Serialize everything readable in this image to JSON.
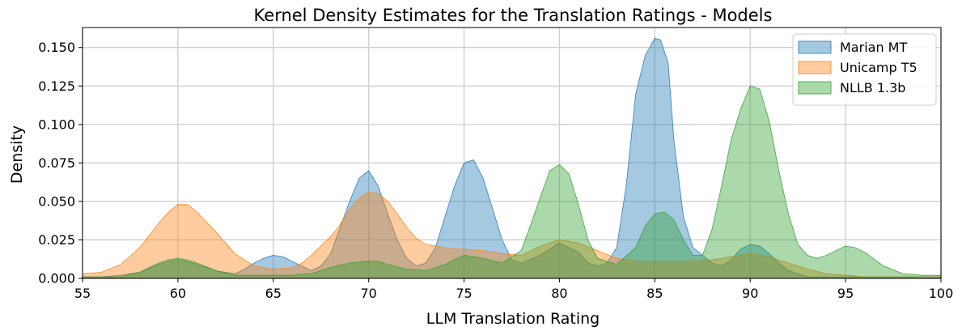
{
  "chart_data": {
    "type": "area",
    "title": "Kernel Density Estimates for the Translation Ratings - Models",
    "xlabel": "LLM Translation Rating",
    "ylabel": "Density",
    "xlim": [
      55,
      100
    ],
    "ylim": [
      0,
      0.163
    ],
    "xticks": [
      55,
      60,
      65,
      70,
      75,
      80,
      85,
      90,
      95,
      100
    ],
    "xtick_labels": [
      "55",
      "60",
      "65",
      "70",
      "75",
      "80",
      "85",
      "90",
      "95",
      "100"
    ],
    "yticks": [
      0,
      0.025,
      0.05,
      0.075,
      0.1,
      0.125,
      0.15
    ],
    "ytick_labels": [
      "0.000",
      "0.025",
      "0.050",
      "0.075",
      "0.100",
      "0.125",
      "0.150"
    ],
    "grid": true,
    "legend_position": "top-right",
    "series": [
      {
        "name": "Marian MT",
        "color": "#1f77b4",
        "x": [
          55,
          56,
          57,
          58,
          59,
          59.5,
          60,
          60.5,
          61,
          62,
          63,
          63.5,
          64,
          64.5,
          65,
          65.5,
          66,
          67,
          67.5,
          68,
          68.5,
          69,
          69.5,
          70,
          70.5,
          71,
          71.5,
          72,
          72.5,
          73,
          73.5,
          74,
          74.5,
          75,
          75.5,
          76,
          76.5,
          77,
          77.5,
          78,
          79,
          80,
          81,
          81.5,
          82,
          82.5,
          83,
          83.5,
          84,
          84.5,
          85,
          85.3,
          85.7,
          86,
          86.5,
          87,
          87.5,
          88,
          88.5,
          89,
          89.5,
          90,
          90.5,
          91,
          91.5,
          92,
          93,
          94,
          95,
          96,
          97,
          98,
          100
        ],
        "y": [
          0.001,
          0.001,
          0.002,
          0.004,
          0.009,
          0.011,
          0.012,
          0.011,
          0.009,
          0.005,
          0.003,
          0.006,
          0.01,
          0.013,
          0.015,
          0.014,
          0.011,
          0.005,
          0.008,
          0.016,
          0.033,
          0.05,
          0.065,
          0.07,
          0.06,
          0.042,
          0.025,
          0.013,
          0.008,
          0.01,
          0.02,
          0.04,
          0.06,
          0.075,
          0.077,
          0.065,
          0.045,
          0.025,
          0.012,
          0.01,
          0.015,
          0.023,
          0.017,
          0.01,
          0.008,
          0.01,
          0.02,
          0.06,
          0.12,
          0.145,
          0.156,
          0.155,
          0.14,
          0.09,
          0.04,
          0.02,
          0.015,
          0.01,
          0.008,
          0.012,
          0.019,
          0.022,
          0.021,
          0.016,
          0.01,
          0.005,
          0.001,
          0.001,
          0.001,
          0.001,
          0.001,
          0.001,
          0.001
        ]
      },
      {
        "name": "Unicamp T5",
        "color": "#ff7f0e",
        "x": [
          55,
          56,
          57,
          58,
          58.5,
          59,
          59.5,
          60,
          60.5,
          61,
          62,
          63,
          64,
          65,
          66,
          66.5,
          67,
          68,
          68.5,
          69,
          69.5,
          70,
          70.5,
          71,
          71.5,
          72,
          72.5,
          73,
          73.5,
          74,
          74.5,
          75,
          76,
          77,
          78,
          79,
          80,
          81,
          82,
          83,
          84,
          85,
          86,
          87,
          88,
          89,
          90,
          91,
          92,
          93,
          94,
          95,
          96,
          97,
          98,
          99,
          100
        ],
        "y": [
          0.003,
          0.004,
          0.009,
          0.02,
          0.028,
          0.036,
          0.043,
          0.048,
          0.048,
          0.043,
          0.03,
          0.016,
          0.008,
          0.006,
          0.007,
          0.01,
          0.015,
          0.027,
          0.035,
          0.045,
          0.052,
          0.056,
          0.055,
          0.05,
          0.042,
          0.033,
          0.026,
          0.022,
          0.021,
          0.02,
          0.019,
          0.019,
          0.018,
          0.016,
          0.015,
          0.021,
          0.025,
          0.023,
          0.018,
          0.013,
          0.011,
          0.011,
          0.011,
          0.011,
          0.012,
          0.014,
          0.016,
          0.014,
          0.01,
          0.006,
          0.003,
          0.002,
          0.001,
          0.001,
          0.001,
          0.001,
          0.001
        ]
      },
      {
        "name": "NLLB 1.3b",
        "color": "#2ca02c",
        "x": [
          55,
          56,
          57,
          58,
          59,
          59.5,
          60,
          60.5,
          61,
          62,
          63,
          64,
          65,
          66,
          67,
          68,
          69,
          70,
          70.5,
          71,
          72,
          73,
          74,
          75,
          76,
          77,
          78,
          78.5,
          79,
          79.5,
          80,
          80.5,
          81,
          81.5,
          82,
          83,
          84,
          84.5,
          85,
          85.5,
          86,
          86.5,
          87,
          87.5,
          88,
          88.5,
          89,
          89.5,
          90,
          90.5,
          91,
          91.5,
          92,
          92.5,
          93,
          93.5,
          94,
          94.5,
          95,
          95.5,
          96,
          97,
          98,
          99,
          100
        ],
        "y": [
          0.001,
          0.001,
          0.001,
          0.004,
          0.01,
          0.012,
          0.013,
          0.012,
          0.01,
          0.005,
          0.002,
          0.002,
          0.002,
          0.002,
          0.003,
          0.007,
          0.01,
          0.011,
          0.011,
          0.009,
          0.006,
          0.005,
          0.009,
          0.015,
          0.013,
          0.01,
          0.018,
          0.035,
          0.053,
          0.07,
          0.074,
          0.068,
          0.048,
          0.025,
          0.013,
          0.009,
          0.02,
          0.034,
          0.042,
          0.043,
          0.038,
          0.025,
          0.015,
          0.015,
          0.032,
          0.06,
          0.09,
          0.11,
          0.125,
          0.123,
          0.102,
          0.07,
          0.042,
          0.022,
          0.015,
          0.013,
          0.015,
          0.018,
          0.021,
          0.02,
          0.017,
          0.008,
          0.003,
          0.002,
          0.002
        ]
      }
    ]
  }
}
